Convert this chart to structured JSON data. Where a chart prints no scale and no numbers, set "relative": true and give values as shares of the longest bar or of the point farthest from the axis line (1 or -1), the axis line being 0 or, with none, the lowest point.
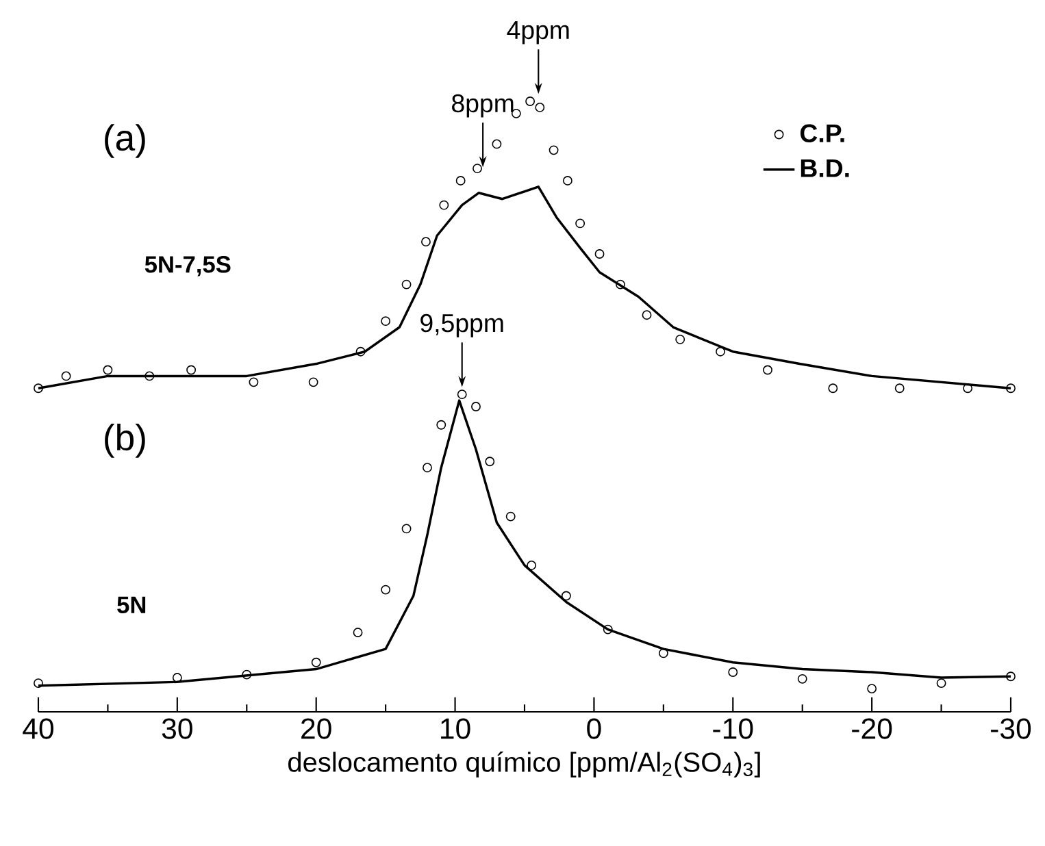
{
  "chart_data": {
    "type": "line",
    "relative": true,
    "xlabel": "deslocamento químico [ppm/Al$_{2}$(SO$_{4}$)$_{3}$]",
    "xlim": [
      40,
      -30
    ],
    "xticks": [
      40,
      30,
      20,
      10,
      0,
      -10,
      -20,
      -30
    ],
    "legend": "top right",
    "series": [
      {
        "name": "C.P.",
        "type": "scatter",
        "color": "#000000",
        "marker": "circle",
        "x": [
          40,
          38,
          35,
          32,
          29,
          24.5,
          20.2,
          16.8,
          15,
          13.5,
          12.1,
          10.8,
          9.6,
          8.4,
          7.0,
          5.6,
          4.6,
          3.9,
          2.9,
          1.9,
          1.0,
          -0.4,
          -1.9,
          -3.8,
          -6.2,
          -9.1,
          -12.5,
          -17.2,
          -22,
          -26.9,
          -30,
          40,
          30,
          25,
          20,
          17,
          15,
          13.5,
          12,
          11,
          9.5,
          8.5,
          7.5,
          6,
          4.5,
          2,
          -1,
          -5,
          -10,
          -15,
          -20,
          -25,
          -30
        ],
        "values": [
          0.53,
          0.55,
          0.56,
          0.55,
          0.56,
          0.54,
          0.54,
          0.59,
          0.64,
          0.7,
          0.77,
          0.83,
          0.87,
          0.89,
          0.93,
          0.98,
          1.0,
          0.99,
          0.92,
          0.87,
          0.8,
          0.75,
          0.7,
          0.65,
          0.61,
          0.59,
          0.56,
          0.53,
          0.53,
          0.53,
          0.53,
          0.047,
          0.056,
          0.061,
          0.081,
          0.13,
          0.2,
          0.3,
          0.4,
          0.47,
          0.52,
          0.5,
          0.41,
          0.32,
          0.24,
          0.19,
          0.135,
          0.096,
          0.065,
          0.054,
          0.038,
          0.047,
          0.058
        ]
      },
      {
        "name": "B.D.",
        "color": "#000000",
        "marker": "none",
        "line_style": "solid",
        "x": [
          40,
          35,
          25,
          20,
          16.5,
          14,
          12.5,
          11.3,
          9.5,
          8.3,
          6.6,
          4.0,
          2.7,
          1.0,
          -0.4,
          -3.2,
          -5.7,
          -10,
          -14.8,
          -20,
          -30,
          null,
          40,
          30,
          20,
          15,
          13,
          12,
          11,
          9.7,
          8.5,
          7,
          5,
          2,
          -1,
          -5,
          -10,
          -15,
          -20,
          -25,
          -30
        ],
        "values": [
          0.53,
          0.55,
          0.55,
          0.57,
          0.59,
          0.63,
          0.7,
          0.78,
          0.83,
          0.85,
          0.84,
          0.86,
          0.81,
          0.76,
          0.72,
          0.68,
          0.63,
          0.59,
          0.57,
          0.55,
          0.53,
          null,
          0.043,
          0.049,
          0.07,
          0.103,
          0.19,
          0.29,
          0.4,
          0.51,
          0.43,
          0.31,
          0.24,
          0.18,
          0.135,
          0.103,
          0.081,
          0.07,
          0.065,
          0.056,
          0.058
        ]
      }
    ],
    "annotations": [
      "(a)",
      "5N-7,5S",
      "(b)",
      "5N",
      {
        "text": "4ppm",
        "x": 4,
        "y": 1.0
      },
      {
        "text": "8ppm",
        "x": 8,
        "y": 0.88
      },
      {
        "text": "9,5ppm",
        "x": 9.5,
        "y": 0.52
      }
    ]
  }
}
